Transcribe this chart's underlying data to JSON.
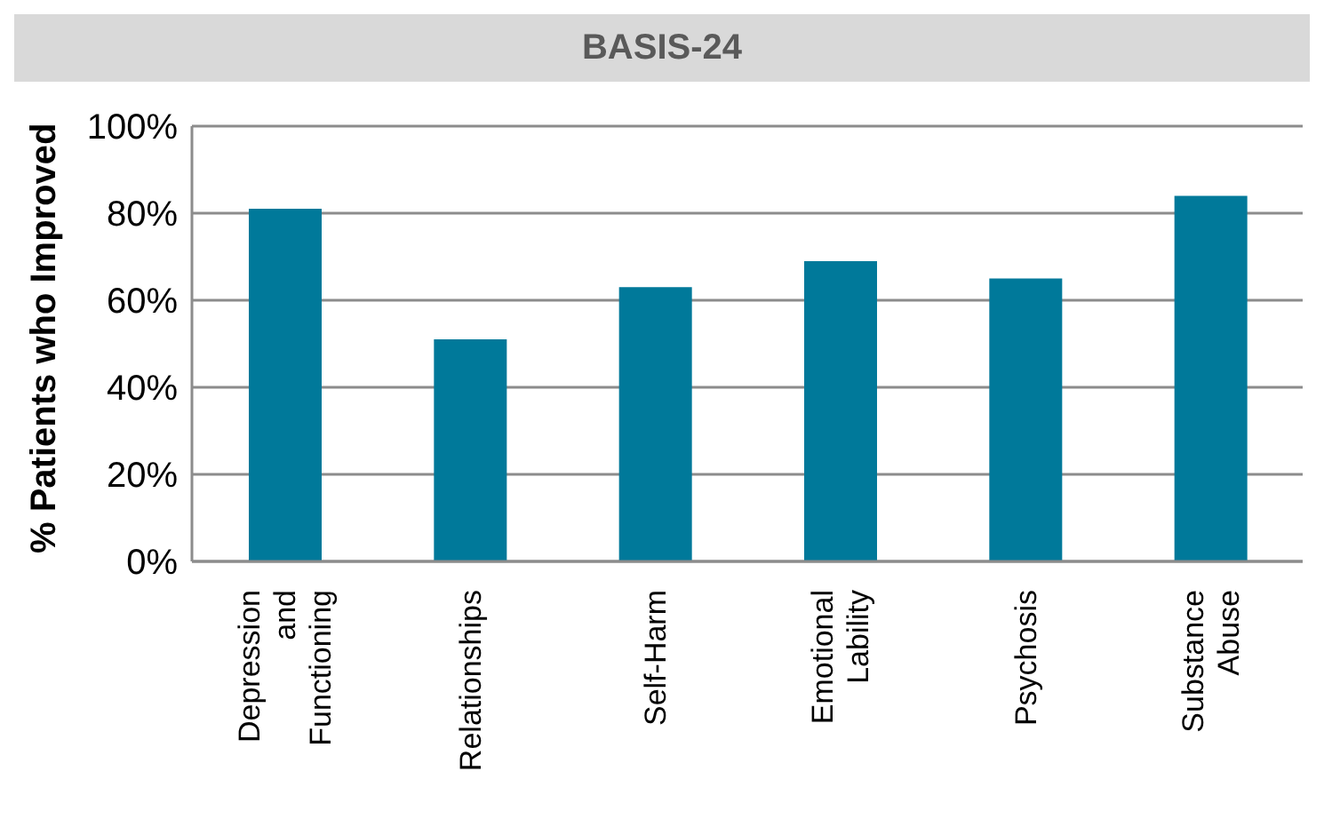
{
  "chart_data": {
    "type": "bar",
    "title": "BASIS-24",
    "ylabel": "% Patients who Improved",
    "categories": [
      "Depression and Functioning",
      "Relationships",
      "Self-Harm",
      "Emotional Lability",
      "Psychosis",
      "Substance Abuse"
    ],
    "values": [
      81,
      51,
      63,
      69,
      65,
      84
    ],
    "color": "#00799a",
    "ylim": [
      0,
      100
    ],
    "yticks": [
      {
        "value": 0,
        "label": "0%"
      },
      {
        "value": 20,
        "label": "20%"
      },
      {
        "value": 40,
        "label": "40%"
      },
      {
        "value": 60,
        "label": "60%"
      },
      {
        "value": 80,
        "label": "80%"
      },
      {
        "value": 100,
        "label": "100%"
      }
    ],
    "grid": "y"
  }
}
